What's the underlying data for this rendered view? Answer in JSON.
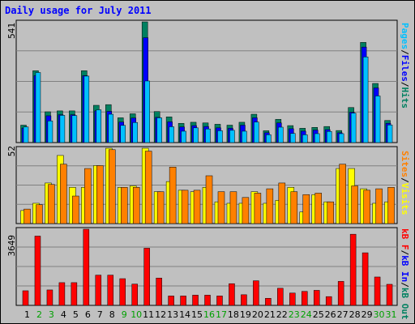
{
  "title": "Daily usage for July 2011",
  "colors": {
    "background": "#c0c0c0",
    "panel": "#c0c0c0",
    "grid": "#808080",
    "pages": "#00c0ff",
    "files": "#0000ff",
    "hits": "#008060",
    "visits": "#ffff00",
    "sites": "#ff8000",
    "kb": "#ff0000",
    "weekend": "#00a000",
    "weekday": "#000000"
  },
  "legends": {
    "top": [
      {
        "text": "Pages",
        "color": "#00c0ff"
      },
      {
        "text": "/",
        "color": "#000000"
      },
      {
        "text": "Files",
        "color": "#0000ff"
      },
      {
        "text": "/",
        "color": "#000000"
      },
      {
        "text": "Hits",
        "color": "#008060"
      }
    ],
    "middle": [
      {
        "text": "Sites",
        "color": "#ff8000"
      },
      {
        "text": "/",
        "color": "#000000"
      },
      {
        "text": "Visits",
        "color": "#ffff00"
      }
    ],
    "bottom": [
      {
        "text": "kB F",
        "color": "#ff0000"
      },
      {
        "text": "/",
        "color": "#000000"
      },
      {
        "text": "kB In",
        "color": "#0000ff"
      },
      {
        "text": "/",
        "color": "#000000"
      },
      {
        "text": "kB Out",
        "color": "#008060"
      }
    ]
  },
  "chart_data": [
    {
      "type": "bar",
      "panel": "top",
      "ymax_label": "541",
      "ylim": [
        0,
        541
      ],
      "categories": [
        "1",
        "2",
        "3",
        "4",
        "5",
        "6",
        "7",
        "8",
        "9",
        "10",
        "11",
        "12",
        "13",
        "14",
        "15",
        "16",
        "17",
        "18",
        "19",
        "20",
        "21",
        "22",
        "23",
        "24",
        "25",
        "26",
        "27",
        "28",
        "29",
        "30",
        "31"
      ],
      "series": [
        {
          "name": "Hits",
          "values": [
            78,
            322,
            138,
            142,
            142,
            322,
            167,
            170,
            111,
            129,
            541,
            139,
            115,
            86,
            91,
            88,
            82,
            78,
            91,
            127,
            53,
            104,
            76,
            64,
            68,
            72,
            54,
            157,
            449,
            265,
            99
          ]
        },
        {
          "name": "Files",
          "values": [
            65,
            300,
            120,
            125,
            125,
            300,
            142,
            140,
            92,
            110,
            470,
            113,
            93,
            70,
            76,
            72,
            66,
            64,
            78,
            111,
            44,
            88,
            62,
            51,
            56,
            58,
            44,
            136,
            428,
            245,
            86
          ]
        },
        {
          "name": "Pages",
          "values": [
            70,
            314,
            97,
            122,
            121,
            298,
            147,
            127,
            77,
            90,
            276,
            111,
            71,
            51,
            66,
            61,
            53,
            55,
            51,
            92,
            35,
            69,
            41,
            35,
            40,
            50,
            40,
            132,
            384,
            209,
            79
          ]
        }
      ]
    },
    {
      "type": "bar",
      "panel": "middle",
      "ymax_label": "52",
      "ylim": [
        0,
        52
      ],
      "categories": [
        "1",
        "2",
        "3",
        "4",
        "5",
        "6",
        "7",
        "8",
        "9",
        "10",
        "11",
        "12",
        "13",
        "14",
        "15",
        "16",
        "17",
        "18",
        "19",
        "20",
        "21",
        "22",
        "23",
        "24",
        "25",
        "26",
        "27",
        "28",
        "29",
        "30",
        "31"
      ],
      "series": [
        {
          "name": "Visits",
          "values": [
            9,
            14,
            28,
            47,
            25,
            25,
            40,
            52,
            25,
            26,
            52,
            22,
            29,
            23,
            22,
            25,
            15,
            14,
            14,
            22,
            14,
            16,
            25,
            8,
            20,
            15,
            38,
            38,
            24,
            14,
            15
          ]
        },
        {
          "name": "Sites",
          "values": [
            10,
            13,
            27,
            41,
            19,
            38,
            40,
            51,
            25,
            25,
            50,
            22,
            39,
            23,
            23,
            33,
            22,
            22,
            18,
            21,
            24,
            28,
            22,
            20,
            21,
            15,
            41,
            26,
            23,
            24,
            25
          ]
        }
      ]
    },
    {
      "type": "bar",
      "panel": "bottom",
      "ymax_label": "3649",
      "ylim": [
        0,
        3649
      ],
      "categories": [
        "1",
        "2",
        "3",
        "4",
        "5",
        "6",
        "7",
        "8",
        "9",
        "10",
        "11",
        "12",
        "13",
        "14",
        "15",
        "16",
        "17",
        "18",
        "19",
        "20",
        "21",
        "22",
        "23",
        "24",
        "25",
        "26",
        "27",
        "28",
        "29",
        "30",
        "31"
      ],
      "series": [
        {
          "name": "kB F",
          "values": [
            700,
            3320,
            740,
            1090,
            1090,
            3649,
            1450,
            1450,
            1280,
            1020,
            2740,
            1310,
            450,
            450,
            490,
            490,
            450,
            1040,
            510,
            1180,
            340,
            820,
            590,
            670,
            720,
            420,
            1150,
            3410,
            2520,
            1360,
            1010
          ]
        }
      ]
    }
  ]
}
